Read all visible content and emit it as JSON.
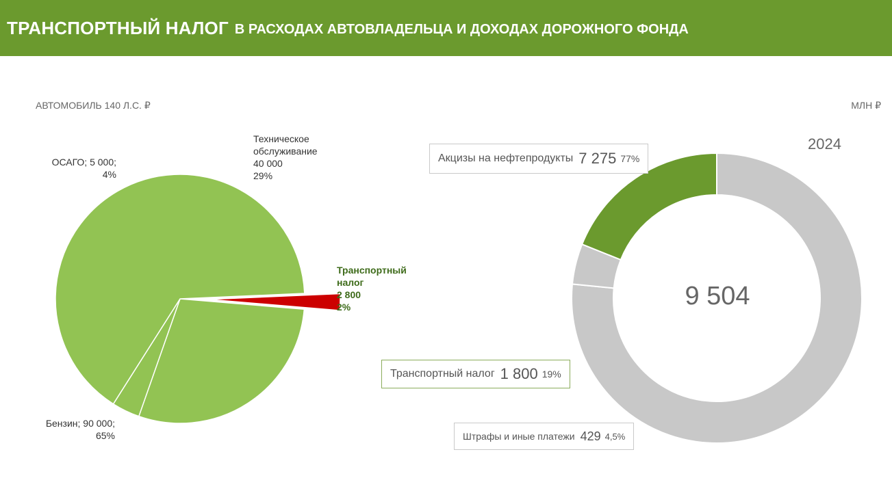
{
  "header": {
    "title_main": "Транспортный налог",
    "title_rest": "в расходах автовладельца и доходах дорожного фонда"
  },
  "left_subtitle": "АВТОМОБИЛЬ 140 Л.С. ₽",
  "right_subtitle": "МЛН ₽",
  "colors": {
    "header": "#6b9a2e",
    "pie_green": "#92c353",
    "transport_red": "#cc0000",
    "donut_gray": "#c8c8c8",
    "donut_green": "#6b9a2e"
  },
  "chart_data": [
    {
      "type": "pie",
      "title": "АВТОМОБИЛЬ 140 Л.С. ₽",
      "slices": [
        {
          "label": "Транспортный налог",
          "value": 2800,
          "percent": "2%",
          "exploded": true
        },
        {
          "label": "Техническое обслуживание",
          "value": 40000,
          "percent": "29%"
        },
        {
          "label": "ОСАГО",
          "value": 5000,
          "percent": "4%"
        },
        {
          "label": "Бензин",
          "value": 90000,
          "percent": "65%"
        }
      ],
      "labels": {
        "transport": [
          "Транспортный",
          "налог",
          "2 800",
          "2%"
        ],
        "maintenance": [
          "Техническое",
          "обслуживание",
          "40 000",
          "29%"
        ],
        "osago": [
          "ОСАГО; 5 000;",
          "4%"
        ],
        "petrol": [
          "Бензин; 90 000;",
          "65%"
        ]
      }
    },
    {
      "type": "donut",
      "unit": "МЛН ₽",
      "year": "2024",
      "total": "9 504",
      "segments": [
        {
          "name": "Акцизы на нефтепродукты",
          "value": 7275,
          "value_label": "7 275",
          "percent": "77%"
        },
        {
          "name": "Штрафы и иные платежи",
          "value": 429,
          "value_label": "429",
          "percent": "4,5%"
        },
        {
          "name": "Транспортный налог",
          "value": 1800,
          "value_label": "1 800",
          "percent": "19%"
        }
      ]
    }
  ]
}
